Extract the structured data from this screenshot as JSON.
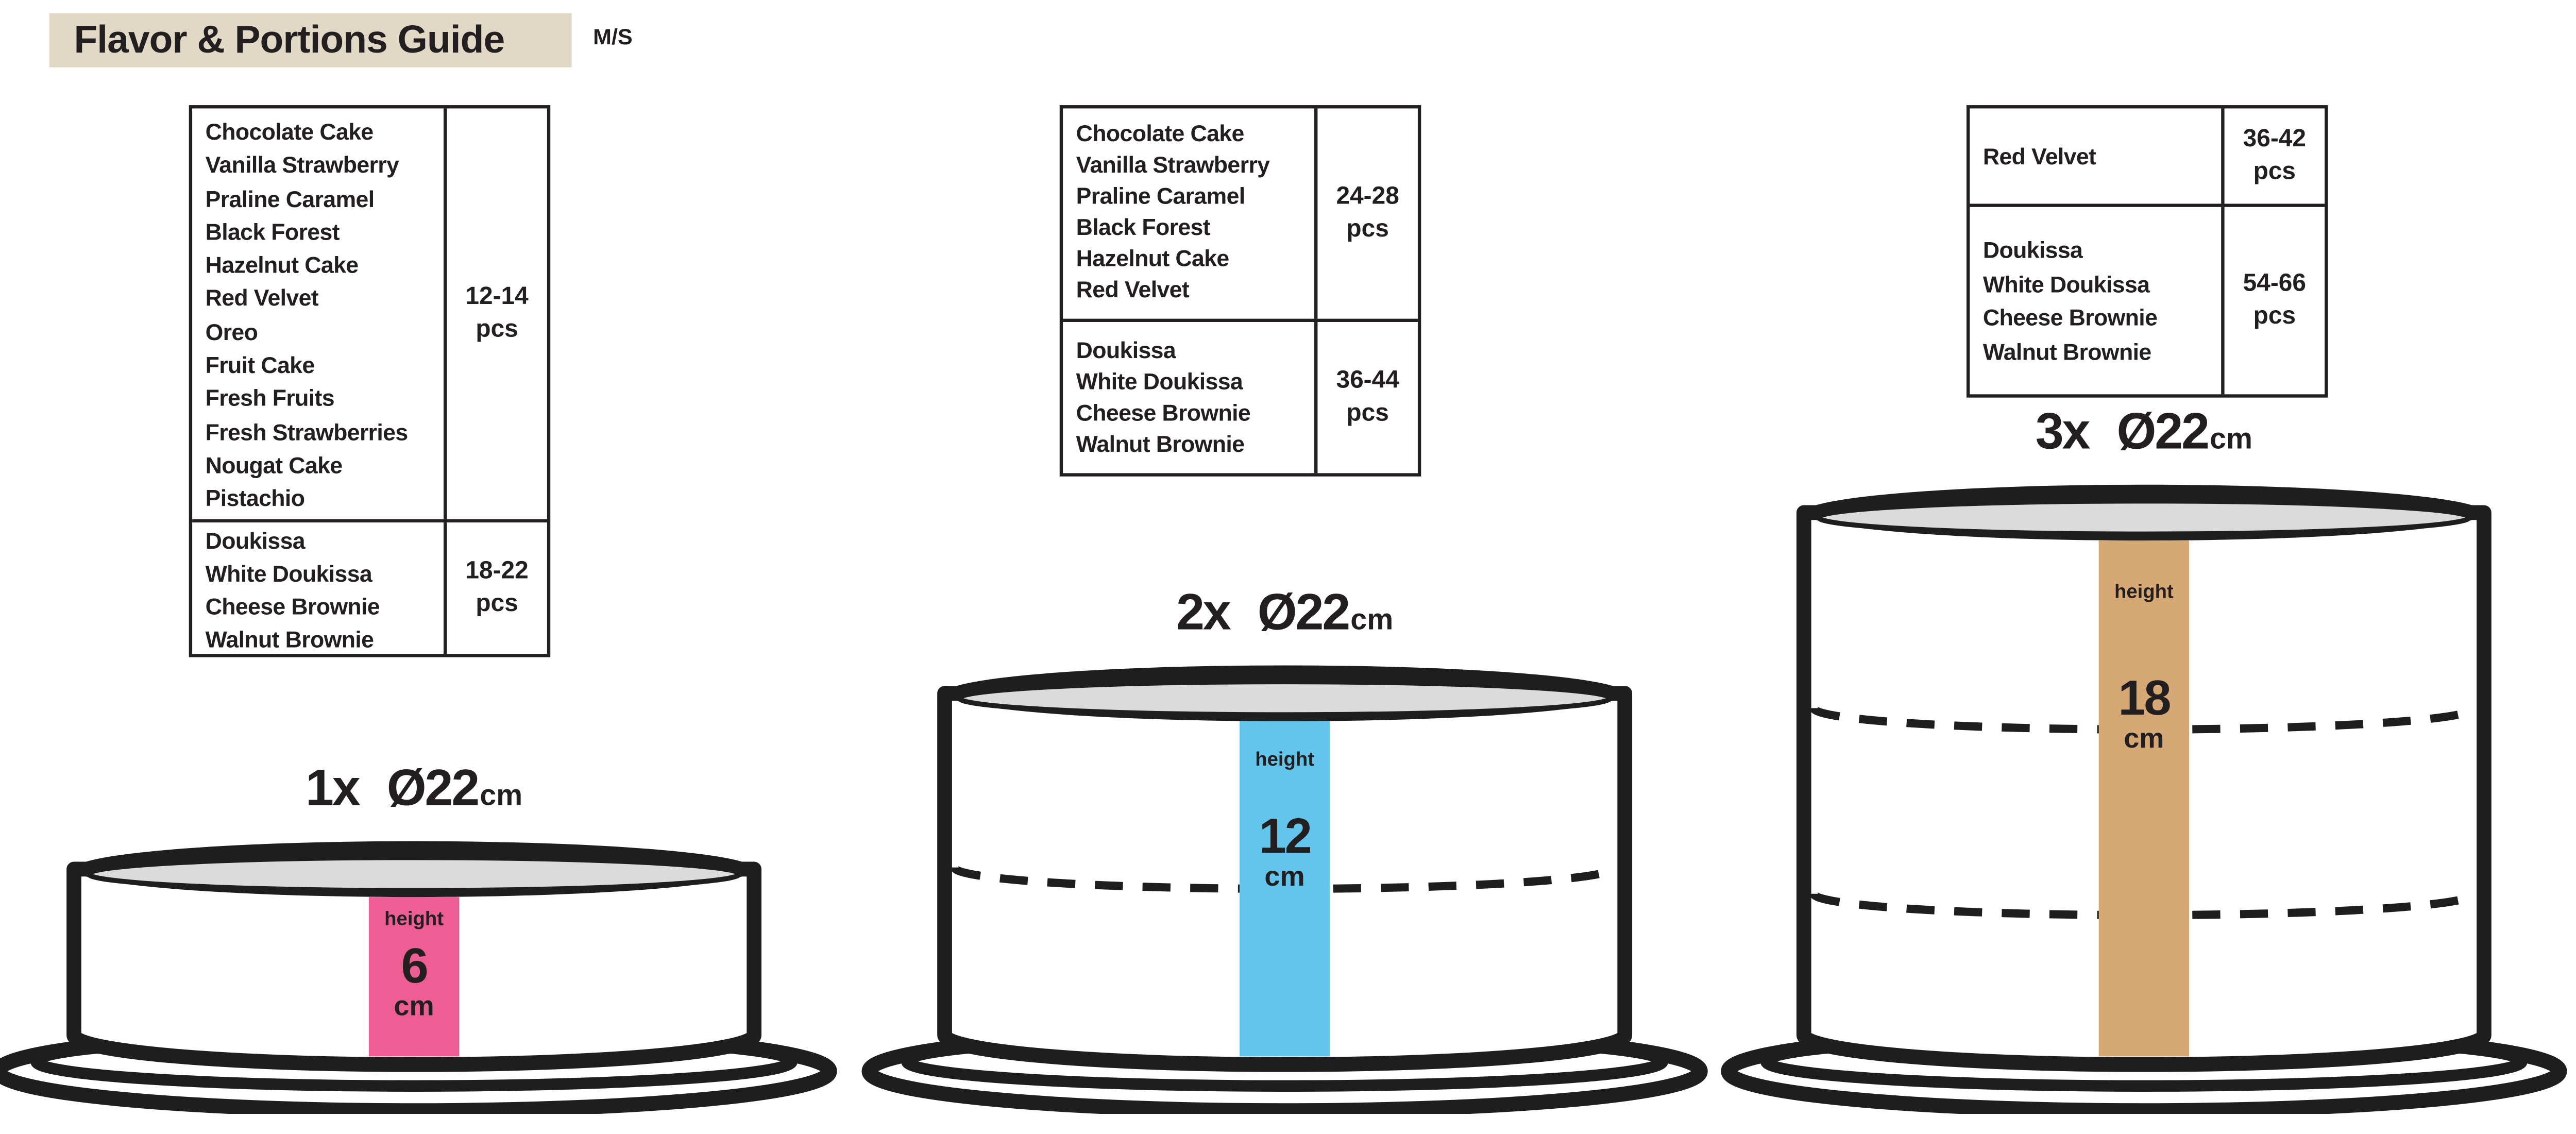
{
  "title": {
    "label": "Flavor & Portions Guide",
    "tag": "M/S"
  },
  "colors": {
    "beige": "#e2d8c6",
    "ink": "#231f20",
    "cake_top_gray": "#dbdbdb",
    "pink": "#ed5e94",
    "blue": "#63c5ec",
    "tan": "#d6a876"
  },
  "tables": [
    {
      "position": "left",
      "rows": [
        {
          "flavors": [
            "Chocolate Cake",
            "Vanilla Strawberry",
            "Praline Caramel",
            "Black Forest",
            "Hazelnut Cake",
            "Red Velvet",
            "Oreo",
            "Fruit Cake",
            "Fresh Fruits",
            "Fresh Strawberries",
            "Nougat Cake",
            "Pistachio"
          ],
          "pcs_range": "12-14",
          "pcs_unit": "pcs"
        },
        {
          "flavors": [
            "Doukissa",
            "White Doukissa",
            "Cheese Brownie",
            "Walnut Brownie"
          ],
          "pcs_range": "18-22",
          "pcs_unit": "pcs"
        }
      ]
    },
    {
      "position": "middle",
      "rows": [
        {
          "flavors": [
            "Chocolate Cake",
            "Vanilla Strawberry",
            "Praline Caramel",
            "Black Forest",
            "Hazelnut Cake",
            "Red Velvet"
          ],
          "pcs_range": "24-28",
          "pcs_unit": "pcs"
        },
        {
          "flavors": [
            "Doukissa",
            "White Doukissa",
            "Cheese Brownie",
            "Walnut Brownie"
          ],
          "pcs_range": "36-44",
          "pcs_unit": "pcs"
        }
      ]
    },
    {
      "position": "right",
      "rows": [
        {
          "flavors": [
            "Red Velvet"
          ],
          "pcs_range": "36-42",
          "pcs_unit": "pcs"
        },
        {
          "flavors": [
            "Doukissa",
            "White Doukissa",
            "Cheese Brownie",
            "Walnut Brownie"
          ],
          "pcs_range": "54-66",
          "pcs_unit": "pcs"
        }
      ]
    }
  ],
  "cakes": [
    {
      "multiplier": "1x",
      "diameter": "Ø22",
      "diameter_unit": "cm",
      "height_word": "height",
      "height_value": "6",
      "height_unit": "cm",
      "bar_color": "#ed5e94",
      "layers": 1
    },
    {
      "multiplier": "2x",
      "diameter": "Ø22",
      "diameter_unit": "cm",
      "height_word": "height",
      "height_value": "12",
      "height_unit": "cm",
      "bar_color": "#63c5ec",
      "layers": 2
    },
    {
      "multiplier": "3x",
      "diameter": "Ø22",
      "diameter_unit": "cm",
      "height_word": "height",
      "height_value": "18",
      "height_unit": "cm",
      "bar_color": "#d6a876",
      "layers": 3
    }
  ]
}
